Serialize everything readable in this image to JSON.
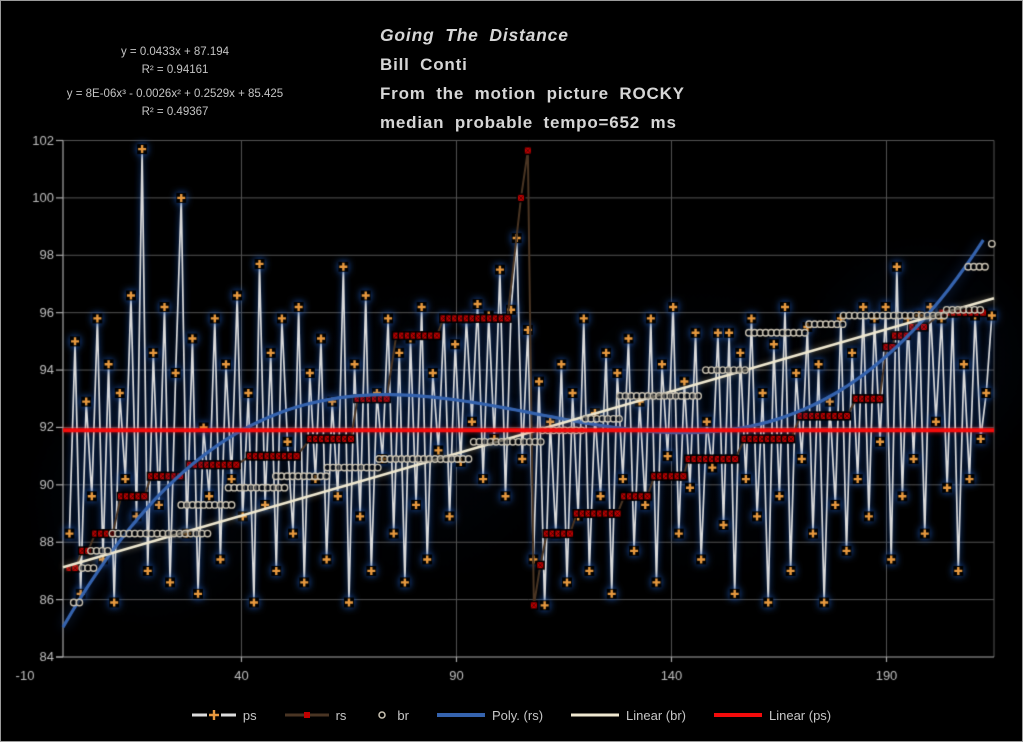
{
  "header": {
    "line1": "Going The Distance",
    "line2": "Bill Conti",
    "line3": "From the motion picture ROCKY",
    "line4": "median probable tempo=652 ms"
  },
  "equations": {
    "linear_eq": "y = 0.0433x + 87.194",
    "linear_r2": "R² = 0.94161",
    "poly_eq": "y = 8E-06x³ - 0.0026x² + 0.2529x + 85.425",
    "poly_r2": "R² = 0.49367"
  },
  "legend": {
    "items": [
      {
        "label": "ps"
      },
      {
        "label": "rs"
      },
      {
        "label": "br"
      },
      {
        "label": "Poly. (rs)"
      },
      {
        "label": "Linear (br)"
      },
      {
        "label": "Linear (ps)"
      }
    ]
  },
  "colors": {
    "background": "#000000",
    "gridline": "#545454",
    "axis": "#a8a8a8",
    "tick_label": "#bdbdbd",
    "title_text": "#d6d6d6",
    "equation_text": "#c4c4c4",
    "legend_text": "#c6c6c6",
    "glow_blue": "#1c56b4"
  },
  "chart_data": {
    "type": "scatter",
    "title": "Going The Distance",
    "xlabel": "",
    "ylabel": "",
    "xlim": [
      -10,
      215
    ],
    "ylim": [
      84,
      102
    ],
    "x_window": [
      -1.5,
      215
    ],
    "x_ticks": [
      -10,
      40,
      90,
      140,
      190
    ],
    "y_tick_min": 84,
    "y_tick_max": 102,
    "y_tick_step": 2,
    "grid": true,
    "legend_position": "bottom",
    "series": [
      {
        "name": "ps",
        "type": "line",
        "line_color": "#dcdcdc",
        "line_width": 1.7,
        "marker": "plus",
        "marker_color": "#e7993f",
        "glow_color": "rgba(28,86,180,0.85)",
        "x_start": 0,
        "x_step": 1.3,
        "y": [
          88.3,
          95.0,
          86.2,
          92.9,
          89.6,
          95.8,
          87.4,
          94.2,
          85.9,
          93.2,
          90.2,
          96.6,
          88.9,
          101.7,
          87.0,
          94.6,
          89.3,
          96.2,
          86.6,
          93.9,
          100.0,
          88.3,
          95.1,
          86.2,
          92.0,
          89.6,
          95.8,
          87.4,
          94.2,
          90.2,
          96.6,
          88.9,
          93.2,
          85.9,
          97.7,
          89.3,
          94.6,
          87.0,
          95.8,
          91.5,
          88.3,
          96.2,
          86.6,
          93.9,
          90.2,
          95.1,
          87.4,
          92.9,
          89.6,
          97.6,
          85.9,
          94.2,
          88.9,
          96.6,
          87.0,
          93.2,
          90.9,
          95.8,
          88.3,
          94.6,
          86.6,
          95.1,
          89.3,
          96.2,
          87.4,
          93.9,
          91.2,
          95.8,
          88.9,
          94.9,
          90.8,
          95.8,
          92.2,
          96.3,
          90.2,
          95.9,
          91.6,
          97.5,
          89.6,
          96.1,
          98.6,
          90.9,
          95.4,
          87.4,
          93.6,
          85.8,
          92.2,
          88.3,
          94.2,
          86.6,
          93.2,
          88.9,
          95.8,
          87.0,
          92.5,
          89.6,
          94.6,
          86.2,
          93.9,
          90.2,
          95.1,
          87.7,
          92.9,
          89.3,
          95.8,
          86.6,
          94.2,
          91.0,
          96.2,
          88.3,
          93.6,
          89.9,
          95.3,
          87.4,
          92.2,
          90.6,
          95.3,
          88.6,
          95.3,
          86.2,
          94.6,
          90.2,
          95.8,
          88.9,
          93.2,
          85.9,
          94.9,
          89.6,
          96.2,
          87.0,
          93.9,
          90.9,
          95.5,
          88.3,
          94.2,
          85.9,
          92.9,
          89.3,
          95.8,
          87.7,
          94.6,
          90.2,
          96.2,
          88.9,
          95.8,
          91.5,
          96.2,
          87.4,
          97.6,
          89.6,
          95.8,
          90.9,
          95.9,
          88.3,
          96.2,
          92.2,
          95.8,
          89.9,
          96.0,
          87.0,
          94.2,
          90.2,
          95.9,
          91.6,
          93.2,
          95.9
        ]
      },
      {
        "name": "rs",
        "type": "line",
        "line_color": "#4a3523",
        "line_width": 2,
        "marker": "square-x",
        "marker_color": "#c00000",
        "marker_step": 1.35,
        "runs": [
          [
            0,
            2,
            87.1
          ],
          [
            3,
            5,
            87.7
          ],
          [
            6,
            11,
            88.3
          ],
          [
            12,
            18,
            89.6
          ],
          [
            19,
            26,
            90.3
          ],
          [
            28,
            40,
            90.7
          ],
          [
            42,
            54,
            91.0
          ],
          [
            56,
            66,
            91.6
          ],
          [
            67,
            75,
            93.0
          ],
          [
            76,
            86,
            95.2
          ],
          [
            87,
            103,
            95.8
          ],
          [
            111,
            117,
            88.3
          ],
          [
            118,
            128,
            89.0
          ],
          [
            129,
            135,
            89.6
          ],
          [
            136,
            143,
            90.3
          ],
          [
            144,
            156,
            90.9
          ],
          [
            157,
            168,
            91.6
          ],
          [
            170,
            182,
            92.4
          ],
          [
            183,
            189,
            93.0
          ],
          [
            190,
            192,
            94.8
          ],
          [
            192,
            196,
            95.2
          ],
          [
            196,
            200,
            95.5
          ],
          [
            203,
            213,
            96.0
          ]
        ],
        "points": [
          [
            105,
            100.0
          ],
          [
            106.6,
            101.65
          ],
          [
            108,
            85.8
          ],
          [
            109.5,
            87.2
          ]
        ]
      },
      {
        "name": "br",
        "type": "markers",
        "marker": "circle",
        "marker_color": "#c9c2b2",
        "marker_step": 1.3,
        "runs": [
          [
            1,
            3,
            85.9
          ],
          [
            3,
            6,
            87.1
          ],
          [
            5,
            9,
            87.7
          ],
          [
            10,
            33,
            88.3
          ],
          [
            26,
            38,
            89.3
          ],
          [
            37,
            50,
            89.9
          ],
          [
            48,
            60,
            90.3
          ],
          [
            60,
            72,
            90.6
          ],
          [
            72,
            93,
            90.9
          ],
          [
            94,
            110,
            91.5
          ],
          [
            110,
            120,
            91.9
          ],
          [
            120,
            128,
            92.3
          ],
          [
            128,
            147,
            93.1
          ],
          [
            148,
            158,
            94.0
          ],
          [
            158,
            172,
            95.3
          ],
          [
            172,
            180,
            95.6
          ],
          [
            180,
            204,
            95.9
          ],
          [
            204,
            212,
            96.1
          ],
          [
            209,
            214,
            97.6
          ]
        ],
        "points": [
          [
            214.5,
            98.4
          ]
        ]
      },
      {
        "name": "Poly. (rs)",
        "type": "cubic",
        "line_color": "#3563ae",
        "line_width": 2.2,
        "glow_color": "rgba(40,90,180,0.55)",
        "coeffs": [
          8e-06,
          -0.0026,
          0.2529,
          85.425
        ],
        "x_range": [
          -1.5,
          212.5
        ]
      },
      {
        "name": "Linear (br)",
        "type": "linear",
        "line_color": "#efe8d0",
        "line_width": 2.6,
        "glow_color": "rgba(235,225,185,0.45)",
        "coeffs": [
          0.0433,
          87.194
        ],
        "x_range": [
          -1.5,
          215
        ]
      },
      {
        "name": "Linear (ps)",
        "type": "linear",
        "line_color": "#f40b0b",
        "line_width": 4,
        "glow_color": "rgba(255,30,30,0.45)",
        "coeffs": [
          0,
          91.9
        ],
        "x_range": [
          -1.5,
          215
        ]
      }
    ]
  }
}
